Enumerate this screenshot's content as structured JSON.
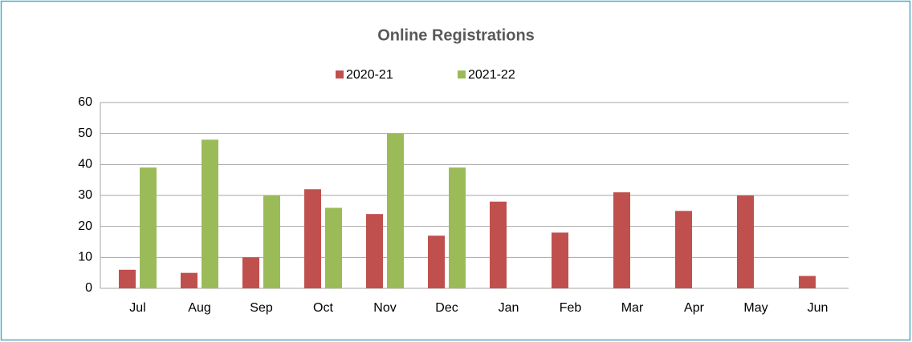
{
  "chart_data": {
    "type": "bar",
    "title": "Online Registrations",
    "categories": [
      "Jul",
      "Aug",
      "Sep",
      "Oct",
      "Nov",
      "Dec",
      "Jan",
      "Feb",
      "Mar",
      "Apr",
      "May",
      "Jun"
    ],
    "series": [
      {
        "name": "2020-21",
        "color": "#c0504d",
        "values": [
          6,
          5,
          10,
          32,
          24,
          17,
          28,
          18,
          31,
          25,
          30,
          4
        ]
      },
      {
        "name": "2021-22",
        "color": "#9bbb59",
        "values": [
          39,
          48,
          30,
          26,
          50,
          39,
          null,
          null,
          null,
          null,
          null,
          null
        ]
      }
    ],
    "ylim": [
      0,
      60
    ],
    "yticks": [
      0,
      10,
      20,
      30,
      40,
      50,
      60
    ],
    "grid": true,
    "legend": "top"
  }
}
